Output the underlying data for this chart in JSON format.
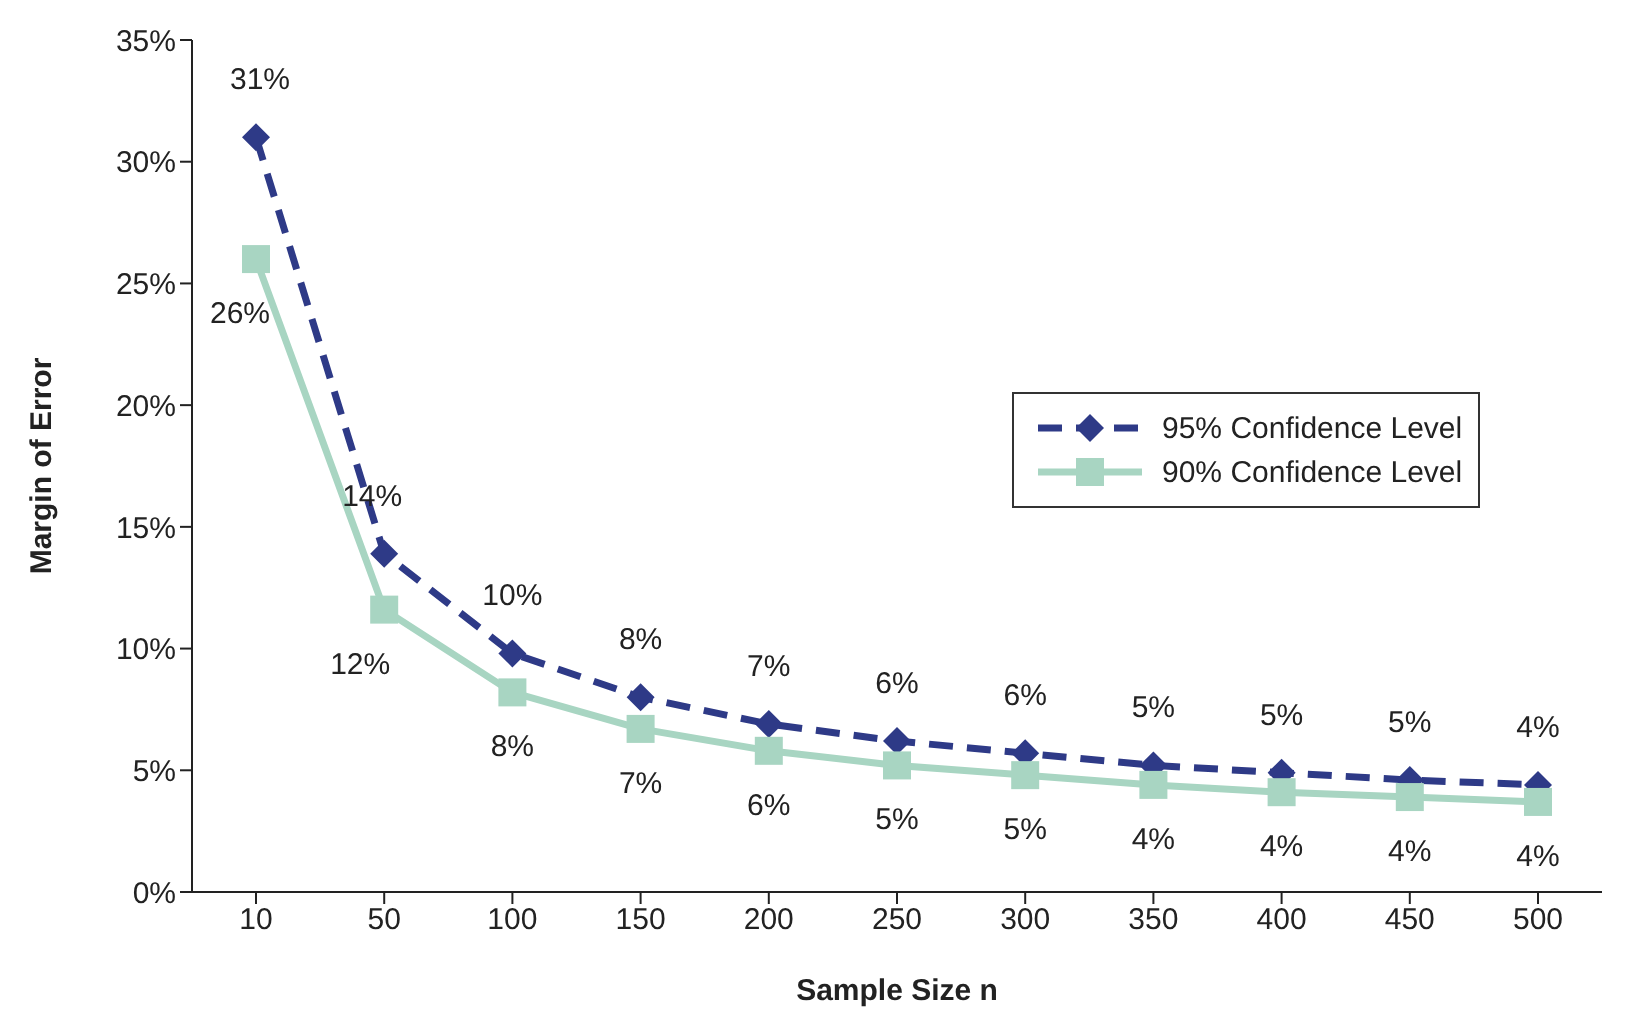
{
  "chart_data": {
    "type": "line",
    "xlabel": "Sample Size n",
    "ylabel": "Margin of Error",
    "categories": [
      "10",
      "50",
      "100",
      "150",
      "200",
      "250",
      "300",
      "350",
      "400",
      "450",
      "500"
    ],
    "series": [
      {
        "name": "95% Confidence Level",
        "color": "#2e3a87",
        "marker": "diamond",
        "line_style": "dashed",
        "values": [
          31.0,
          13.9,
          9.8,
          8.0,
          6.9,
          6.2,
          5.7,
          5.2,
          4.9,
          4.6,
          4.4
        ],
        "value_labels": [
          "31%",
          "14%",
          "10%",
          "8%",
          "7%",
          "6%",
          "6%",
          "5%",
          "5%",
          "5%",
          "4%"
        ]
      },
      {
        "name": "90% Confidence Level",
        "color": "#a8d5c2",
        "marker": "square",
        "line_style": "solid",
        "values": [
          26.0,
          11.6,
          8.2,
          6.7,
          5.8,
          5.2,
          4.8,
          4.4,
          4.1,
          3.9,
          3.7
        ],
        "value_labels": [
          "26%",
          "12%",
          "8%",
          "7%",
          "6%",
          "5%",
          "5%",
          "4%",
          "4%",
          "4%",
          "4%"
        ]
      }
    ],
    "ylim": [
      0,
      35
    ],
    "yticks": [
      {
        "value": 0,
        "label": "0%"
      },
      {
        "value": 5,
        "label": "5%"
      },
      {
        "value": 10,
        "label": "10%"
      },
      {
        "value": 15,
        "label": "15%"
      },
      {
        "value": 20,
        "label": "20%"
      },
      {
        "value": 25,
        "label": "25%"
      },
      {
        "value": 30,
        "label": "30%"
      },
      {
        "value": 35,
        "label": "35%"
      }
    ],
    "grid": false,
    "legend": "right"
  }
}
